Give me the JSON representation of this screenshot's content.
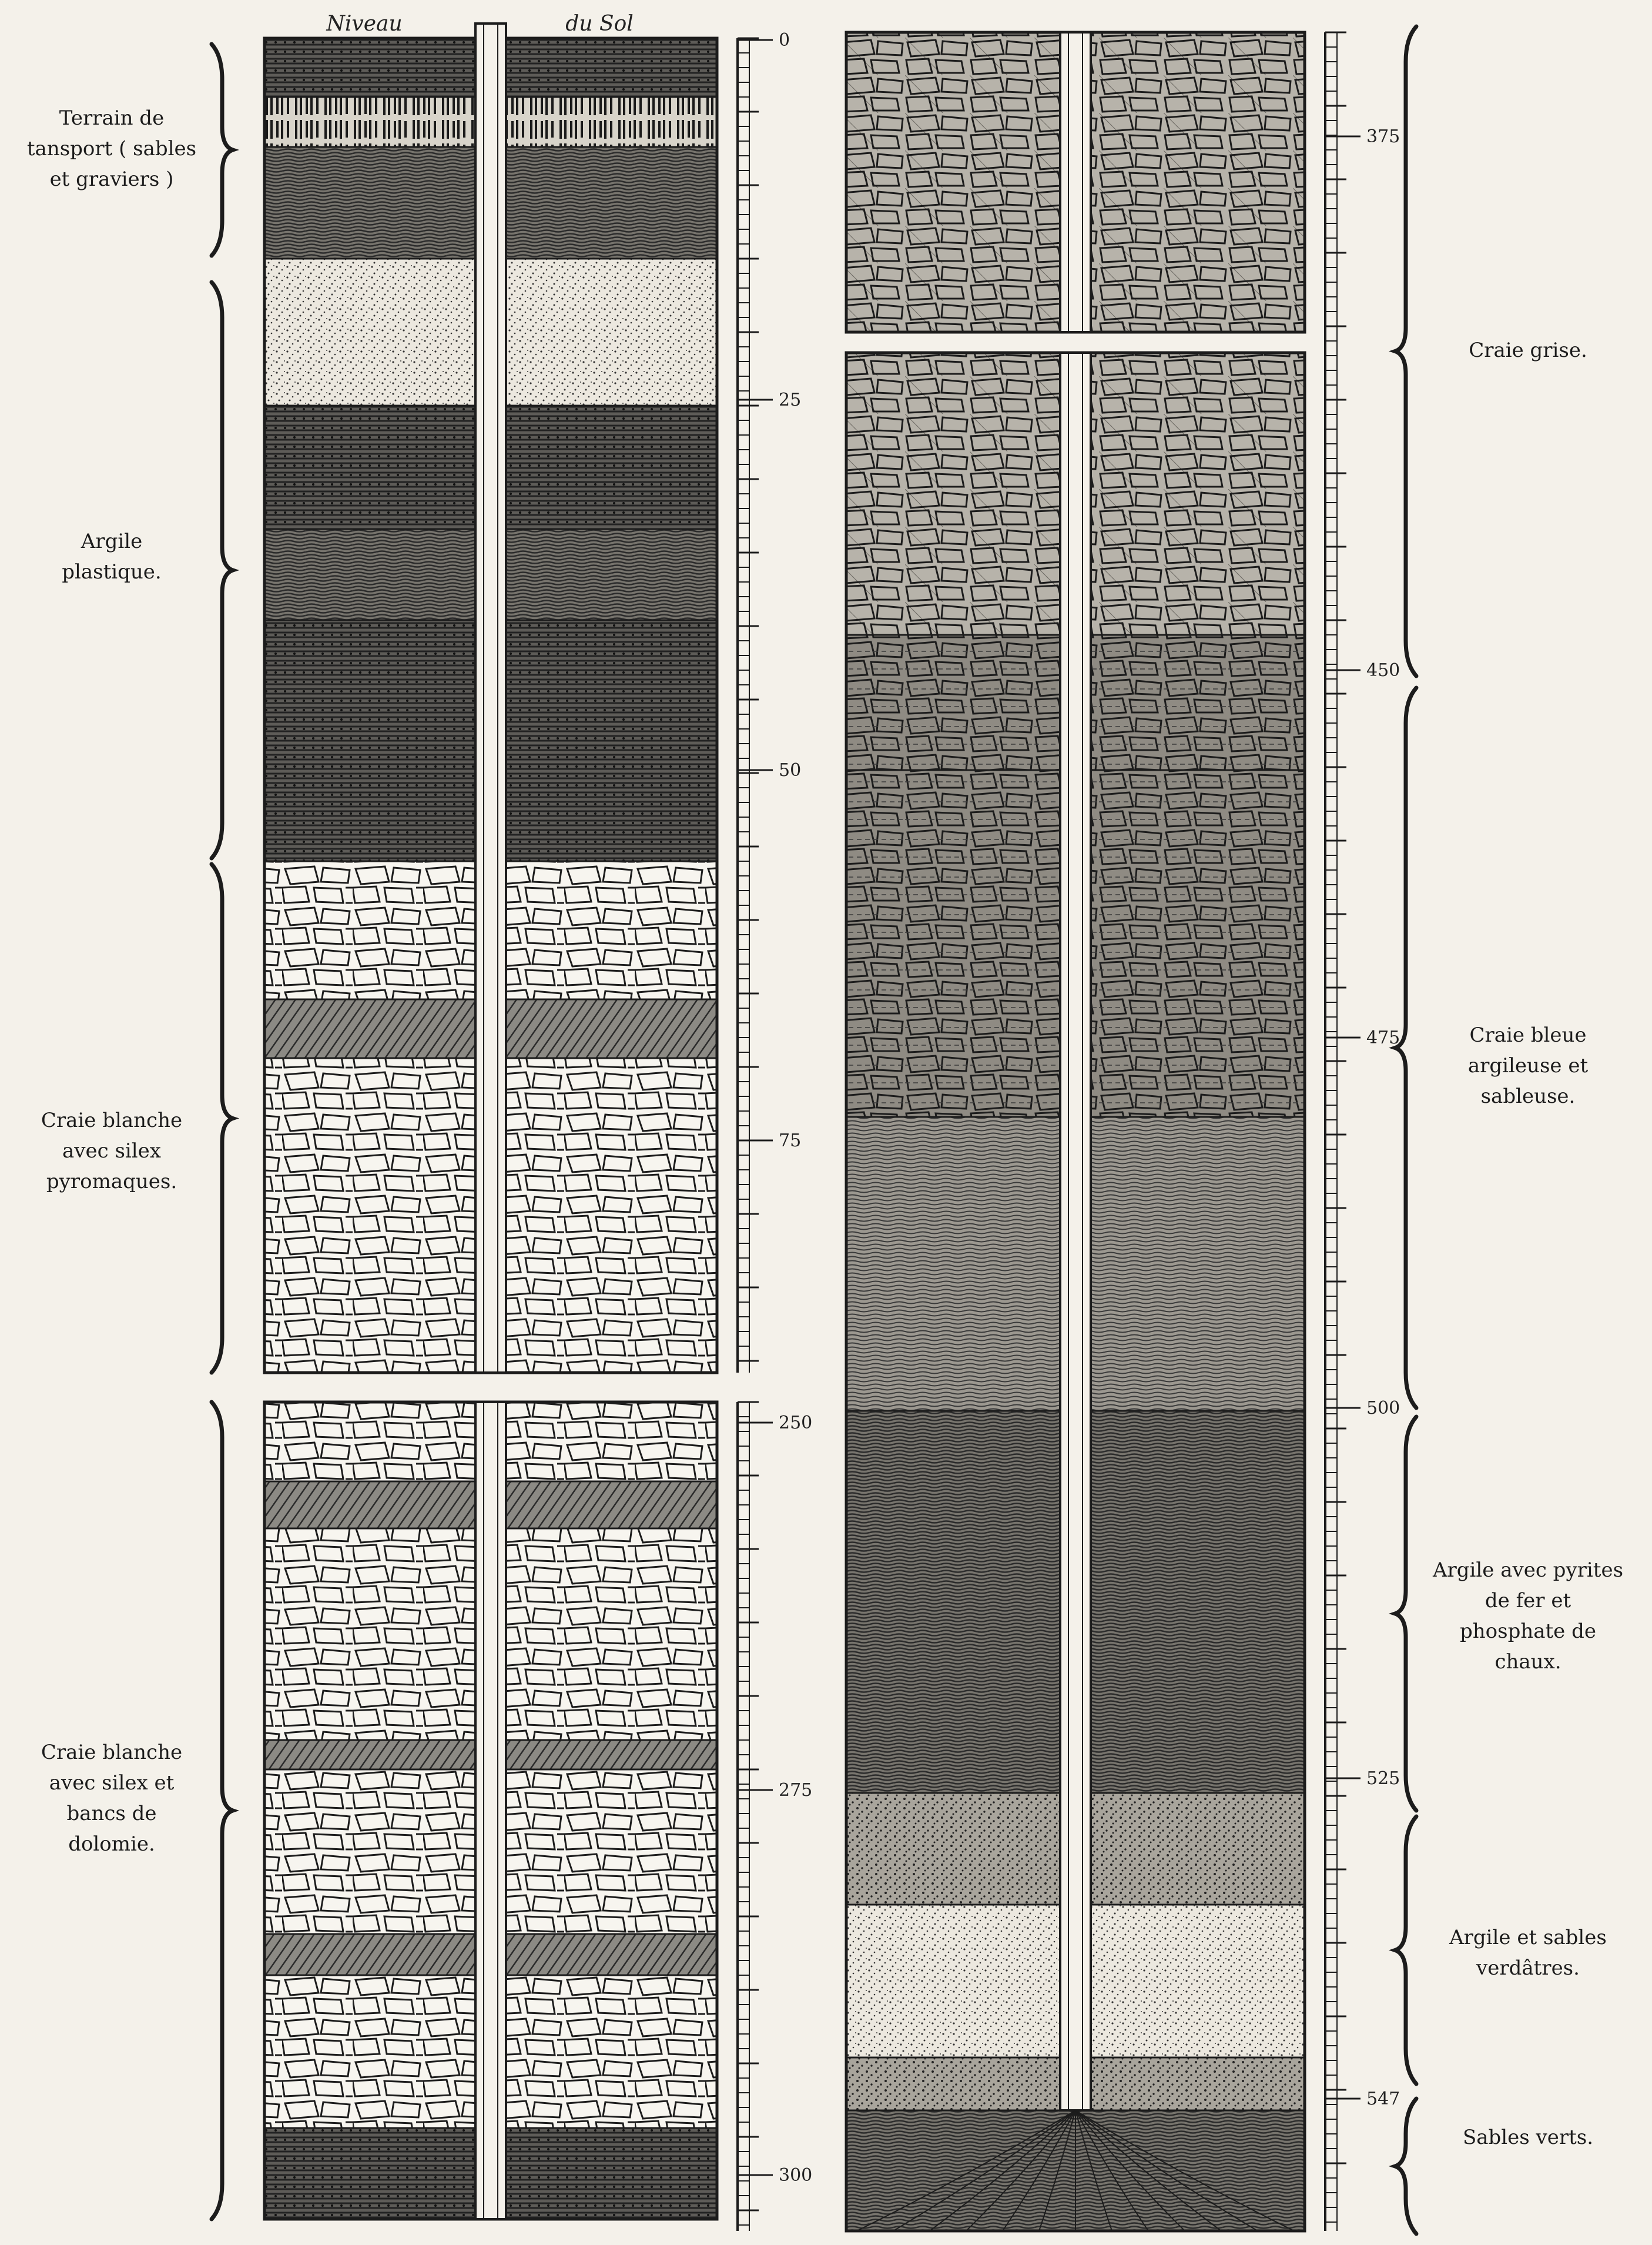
{
  "header": {
    "left": "Niveau",
    "right": "du Sol"
  },
  "depth_ticks": {
    "col_a": [
      "0",
      "25",
      "50",
      "75"
    ],
    "col_b": [
      "250",
      "275",
      "300"
    ],
    "col_c": [
      "375",
      "450",
      "475",
      "500",
      "525",
      "547"
    ]
  },
  "formations": [
    {
      "id": "transport",
      "label": "Terrain de\ntansport ( sables\net graviers )"
    },
    {
      "id": "argile-plastique",
      "label": "Argile\nplastique."
    },
    {
      "id": "craie-silex",
      "label": "Craie blanche\navec silex\npyromaques."
    },
    {
      "id": "craie-dolomie",
      "label": "Craie blanche\navec silex et\nbancs de\ndolomie."
    },
    {
      "id": "craie-grise",
      "label": "Craie grise."
    },
    {
      "id": "craie-bleue",
      "label": "Craie bleue\nargileuse et\nsableuse."
    },
    {
      "id": "argile-pyrites",
      "label": "Argile avec pyrites\nde fer et\nphosphate de\nchaux."
    },
    {
      "id": "argile-sables",
      "label": "Argile et sables\nverdâtres."
    },
    {
      "id": "sables-verts",
      "label": "Sables verts."
    }
  ],
  "colors": {
    "ink": "#1c1c1c",
    "paper": "#f4f1ea"
  }
}
